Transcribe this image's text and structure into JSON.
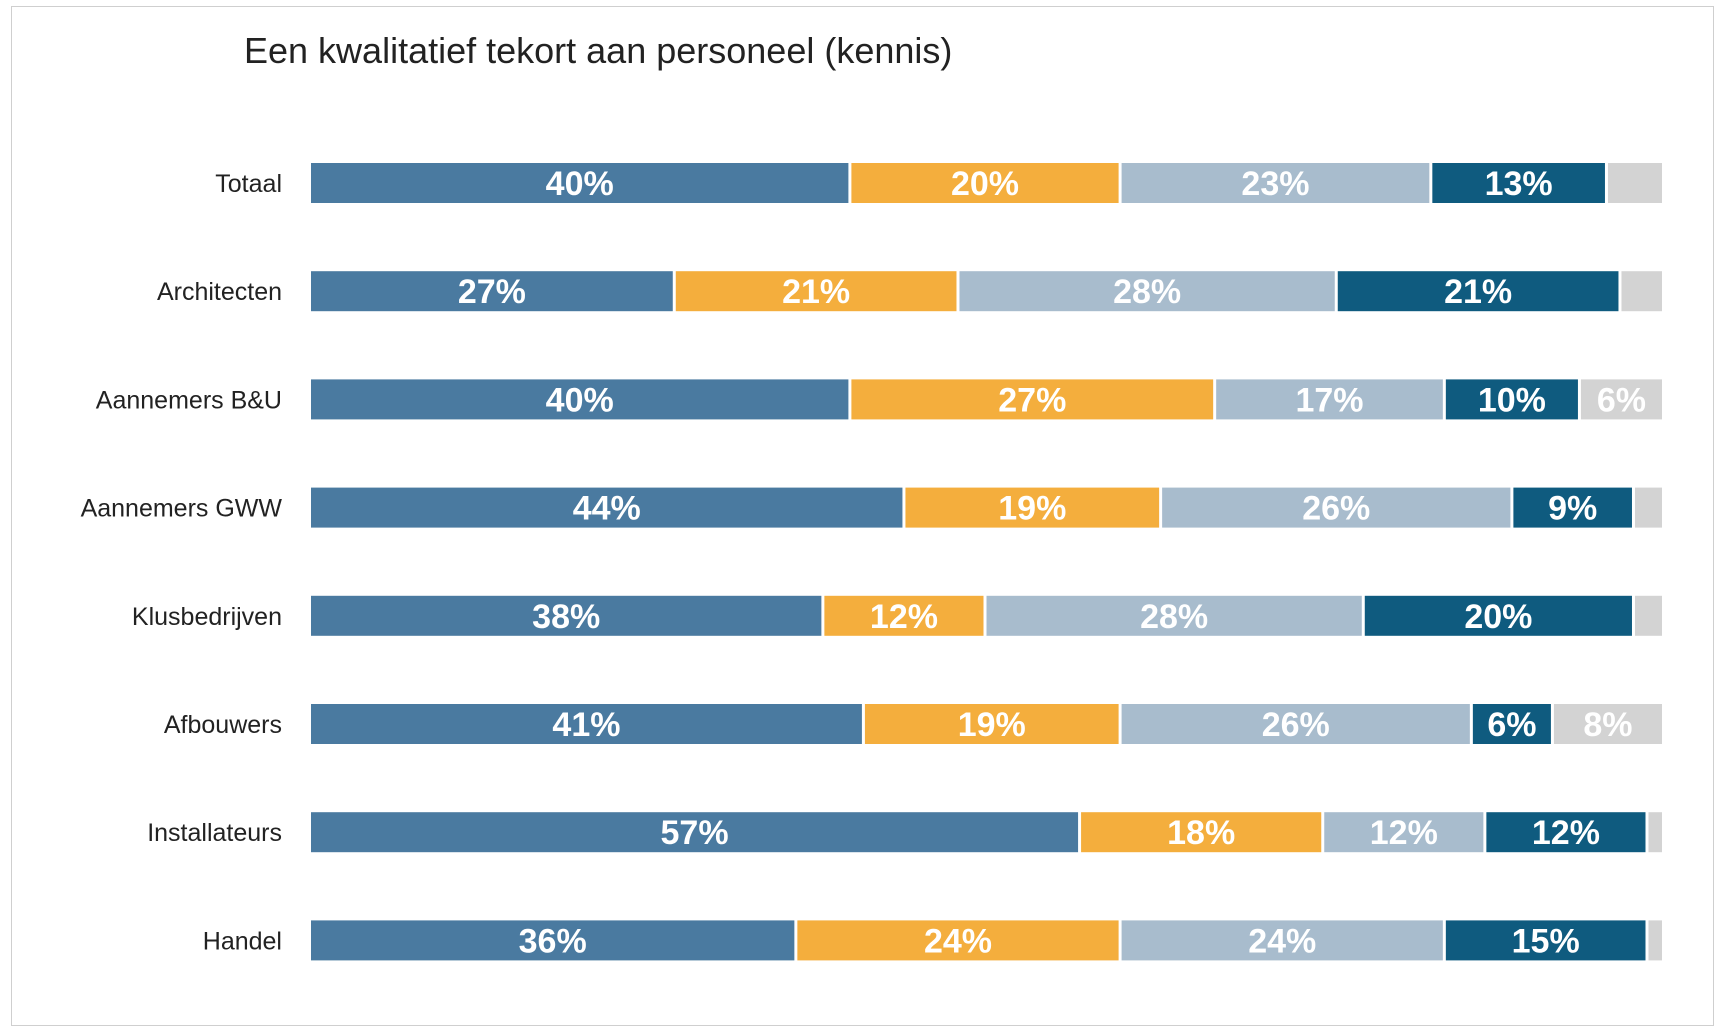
{
  "chart_data": {
    "type": "bar",
    "orientation": "horizontal",
    "stacked": true,
    "title": "Een kwalitatief tekort aan personeel (kennis)",
    "xlabel": "",
    "ylabel": "",
    "xlim": [
      0,
      100
    ],
    "grid": false,
    "legend": "none",
    "categories": [
      "Totaal",
      "Architecten",
      "Aannemers B&U",
      "Aannemers GWW",
      "Klusbedrijven",
      "Afbouwers",
      "Installateurs",
      "Handel"
    ],
    "series": [
      {
        "values": [
          40,
          27,
          40,
          44,
          38,
          41,
          57,
          36
        ],
        "labels": [
          "40%",
          "27%",
          "40%",
          "44%",
          "38%",
          "41%",
          "57%",
          "36%"
        ],
        "color": "#4a7aa0"
      },
      {
        "values": [
          20,
          21,
          27,
          19,
          12,
          19,
          18,
          24
        ],
        "labels": [
          "20%",
          "21%",
          "27%",
          "19%",
          "12%",
          "19%",
          "18%",
          "24%"
        ],
        "color": "#f4ae3d"
      },
      {
        "values": [
          23,
          28,
          17,
          26,
          28,
          26,
          12,
          24
        ],
        "labels": [
          "23%",
          "28%",
          "17%",
          "26%",
          "28%",
          "26%",
          "12%",
          "24%"
        ],
        "color": "#a8bccd"
      },
      {
        "values": [
          13,
          21,
          10,
          9,
          20,
          6,
          12,
          15
        ],
        "labels": [
          "13%",
          "21%",
          "10%",
          "9%",
          "20%",
          "6%",
          "12%",
          "15%"
        ],
        "color": "#0f5b7f"
      },
      {
        "values": [
          4,
          3,
          6,
          2,
          2,
          8,
          1,
          1
        ],
        "labels": [
          "",
          "",
          "6%",
          "",
          "",
          "8%",
          "",
          ""
        ],
        "color": "#d3d3d3"
      }
    ]
  }
}
